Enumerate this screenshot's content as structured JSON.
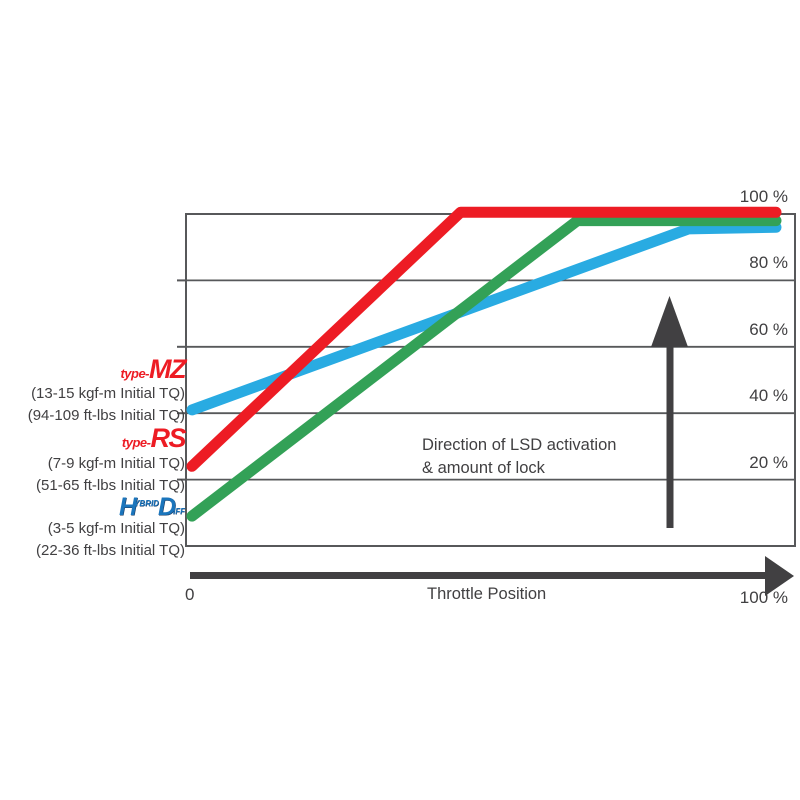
{
  "chart_data": {
    "type": "line",
    "title": "",
    "xlabel": "Throttle Position",
    "ylabel": "",
    "x_origin_label": "0",
    "x_max_label": "100 %",
    "xlim": [
      0,
      100
    ],
    "ylim": [
      0,
      100
    ],
    "grid": "horizontal",
    "legend_position": "left",
    "y_ticks": [
      {
        "value": 100,
        "label": "100 %"
      },
      {
        "value": 80,
        "label": "80 %"
      },
      {
        "value": 60,
        "label": "60 %"
      },
      {
        "value": 40,
        "label": "40 %"
      },
      {
        "value": 20,
        "label": "20 %"
      }
    ],
    "gridline_values": [
      80,
      60,
      40,
      20
    ],
    "annotation": {
      "line1": "Direction of LSD activation",
      "line2": "& amount of lock"
    },
    "series": [
      {
        "name": "type-MZ",
        "color": "#29abe2",
        "points": [
          [
            0,
            41
          ],
          [
            85,
            95.5
          ],
          [
            100,
            96
          ]
        ]
      },
      {
        "name": "Hybrid-Diff",
        "color": "#33a157",
        "points": [
          [
            0,
            9
          ],
          [
            66,
            98
          ],
          [
            100,
            98
          ]
        ]
      },
      {
        "name": "type-RS",
        "color": "#ed1c24",
        "points": [
          [
            0,
            24
          ],
          [
            46,
            100.5
          ],
          [
            100,
            100.5
          ]
        ]
      }
    ]
  },
  "legend": {
    "mz": {
      "prefix": "type-",
      "name": "MZ",
      "tq1": "(13-15 kgf-m Initial TQ)",
      "tq2": "(94-109 ft-lbs Initial TQ)"
    },
    "rs": {
      "prefix": "type-",
      "name": "RS",
      "tq1": "(7-9 kgf-m Initial TQ)",
      "tq2": "(51-65 ft-lbs Initial TQ)"
    },
    "hd": {
      "h": "H",
      "ybrid": "YBRID",
      "d": "D",
      "iff": "IFF",
      "tq1": "(3-5 kgf-m Initial TQ)",
      "tq2": "(22-36 ft-lbs Initial TQ)"
    }
  },
  "colors": {
    "axis_arrow": "#414042",
    "grid_line": "#57585a",
    "text": "#414042",
    "mz_line": "#29abe2",
    "rs_line": "#ed1c24",
    "hd_line": "#33a157",
    "type_logo_red": "#ed1c24",
    "hd_logo_blue": "#1b75bc"
  }
}
